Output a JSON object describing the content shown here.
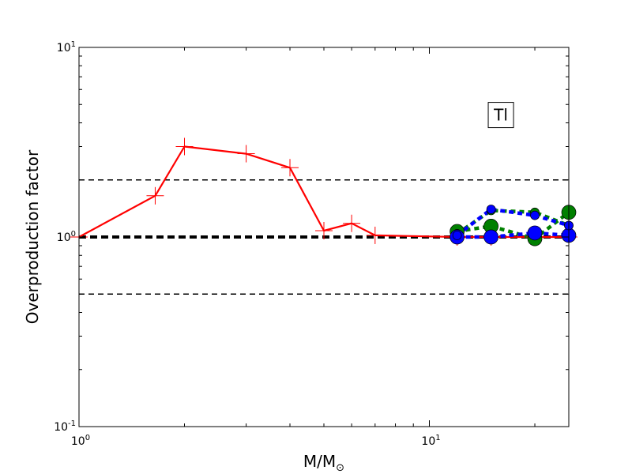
{
  "chart_data": {
    "type": "line",
    "title": "",
    "xlabel": "M/M",
    "xlabel_subscript": "⊙",
    "ylabel": "Overproduction factor",
    "xscale": "log",
    "yscale": "log",
    "xlim": [
      1,
      25
    ],
    "ylim": [
      0.1,
      10
    ],
    "x_ticks": [
      {
        "value": 1,
        "base": "10",
        "exp": "0"
      },
      {
        "value": 10,
        "base": "10",
        "exp": "1"
      }
    ],
    "y_ticks": [
      {
        "value": 0.1,
        "base": "10",
        "exp": "-1"
      },
      {
        "value": 1,
        "base": "10",
        "exp": "0"
      },
      {
        "value": 10,
        "base": "10",
        "exp": "1"
      }
    ],
    "reference_lines": [
      {
        "y": 2.0,
        "style": "dashed",
        "weight": "thin"
      },
      {
        "y": 1.0,
        "style": "dashed",
        "weight": "thick"
      },
      {
        "y": 0.5,
        "style": "dashed",
        "weight": "thin"
      }
    ],
    "annotation": {
      "text": "Tl",
      "x": 16,
      "y": 4.4
    },
    "series": [
      {
        "color": "#ff0000",
        "style": "solid",
        "marker": "plus",
        "x": [
          1.0,
          1.65,
          2.0,
          3.0,
          4.0,
          5.0,
          6.0,
          7.0,
          12.0,
          15.0,
          20.0,
          25.0
        ],
        "y": [
          1.0,
          1.65,
          3.0,
          2.75,
          2.32,
          1.08,
          1.18,
          1.02,
          1.0,
          1.0,
          1.0,
          1.0
        ]
      },
      {
        "color": "#008000",
        "style": "dotted",
        "marker": "circle",
        "x": [
          12,
          15,
          20,
          25
        ],
        "y": [
          1.07,
          1.14,
          0.98,
          1.35
        ]
      },
      {
        "color": "#008000",
        "style": "dotted",
        "marker": "circle",
        "x": [
          12,
          15,
          20,
          25
        ],
        "y": [
          1.04,
          1.38,
          1.35,
          1.15
        ]
      },
      {
        "color": "#0000ff",
        "style": "dotted",
        "marker": "circle",
        "x": [
          12,
          15,
          20,
          25
        ],
        "y": [
          1.0,
          1.0,
          1.05,
          1.02
        ]
      },
      {
        "color": "#0000ff",
        "style": "dotted",
        "marker": "circle",
        "x": [
          12,
          15,
          20,
          25
        ],
        "y": [
          1.02,
          1.4,
          1.3,
          1.15
        ]
      }
    ]
  }
}
